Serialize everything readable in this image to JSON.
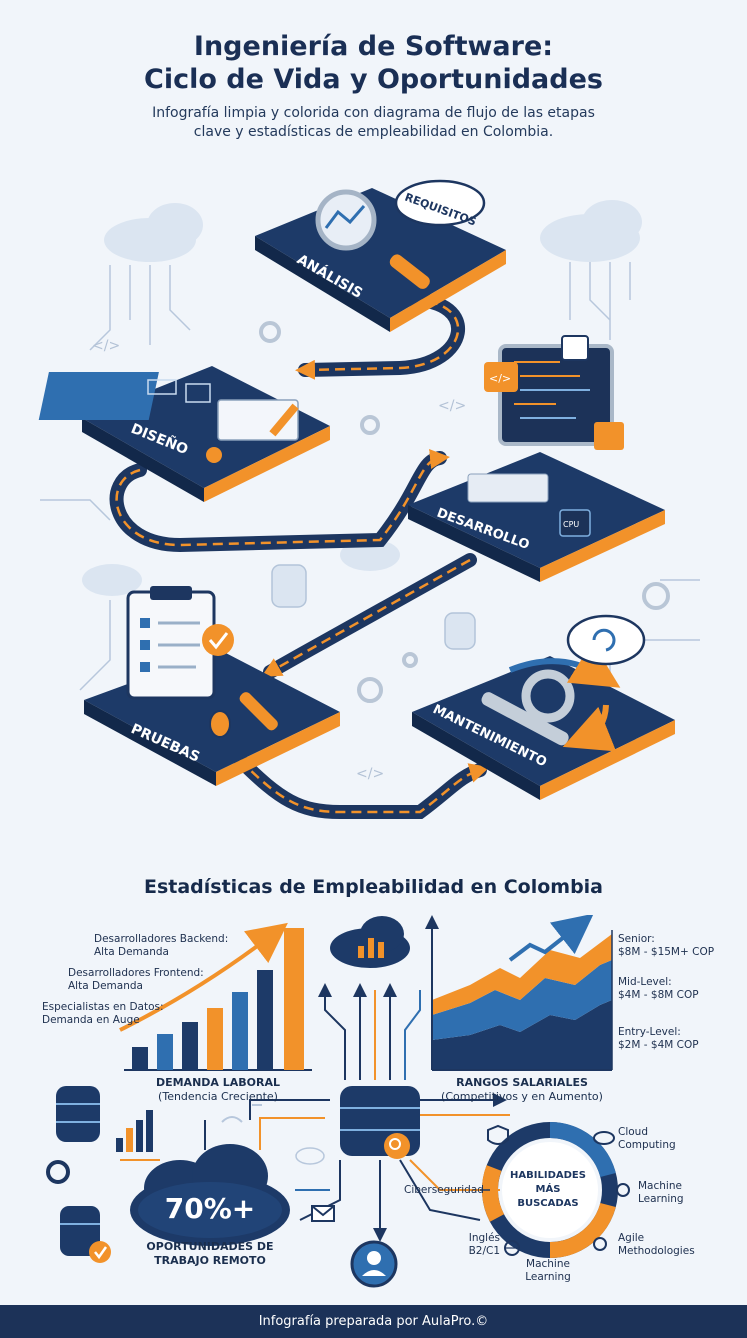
{
  "header": {
    "title_line1": "Ingeniería de Software:",
    "title_line2": "Ciclo de Vida y Oportunidades",
    "subtitle_line1": "Infografía limpia y colorida con diagrama de flujo de las etapas",
    "subtitle_line2": "clave y estadísticas de empleabilidad en Colombia."
  },
  "stages": {
    "analisis": "ANÁLISIS",
    "requisitos": "REQUISITOS",
    "diseno": "DISEÑO",
    "desarrollo": "DESARROLLO",
    "pruebas": "PRUEBAS",
    "mantenimiento": "MANTENIMIENTO",
    "cpu_label": "CPU",
    "code_tag": "</>"
  },
  "stats": {
    "title": "Estadísticas de Empleabilidad en Colombia",
    "demand": {
      "backend_title": "Desarrolladores Backend:",
      "backend_value": "Alta Demanda",
      "frontend_title": "Desarrolladores Frontend:",
      "frontend_value": "Alta Demanda",
      "data_title": "Especialistas en Datos:",
      "data_value": "Demanda en Auge",
      "caption": "DEMANDA LABORAL",
      "caption_sub": "(Tendencia Creciente)"
    },
    "salaries": {
      "senior_title": "Senior:",
      "senior_value": "$8M - $15M+ COP",
      "mid_title": "Mid-Level:",
      "mid_value": "$4M - $8M COP",
      "entry_title": "Entry-Level:",
      "entry_value": "$2M - $4M COP",
      "caption": "RANGOS SALARIALES",
      "caption_sub": "(Competitivos y en Aumento)"
    },
    "remote": {
      "value": "70%+",
      "caption_line1": "OPORTUNIDADES DE",
      "caption_line2": "TRABAJO REMOTO"
    },
    "skills": {
      "center_line1": "HABILIDADES",
      "center_line2": "MÁS",
      "center_line3": "BUSCADAS",
      "cloud_line1": "Cloud",
      "cloud_line2": "Computing",
      "ml_right_line1": "Machine",
      "ml_right_line2": "Learning",
      "agile_line1": "Agile",
      "agile_line2": "Methodologies",
      "ml_bottom_line1": "Machine",
      "ml_bottom_line2": "Learning",
      "english_line1": "Inglés",
      "english_line2": "B2/C1",
      "security": "Ciberseguridad"
    }
  },
  "footer": {
    "text": "Infografía preparada por AulaPro.©"
  },
  "colors": {
    "navy": "#1c3560",
    "blue": "#2f6fb0",
    "orange": "#f2922a",
    "light_blue": "#aec6e3"
  }
}
